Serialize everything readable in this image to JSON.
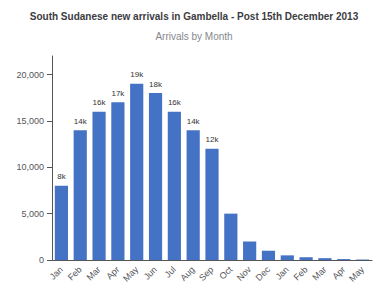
{
  "chart_data": {
    "type": "bar",
    "title": "South Sudanese new arrivals in Gambella - Post 15th December 2013",
    "subtitle": "Arrivals by Month",
    "categories": [
      "Jan",
      "Feb",
      "Mar",
      "Apr",
      "May",
      "Jun",
      "Jul",
      "Aug",
      "Sep",
      "Oct",
      "Nov",
      "Dec",
      "Jan",
      "Feb",
      "Mar",
      "Apr",
      "May"
    ],
    "values": [
      8000,
      14000,
      16000,
      17000,
      19000,
      18000,
      16000,
      14000,
      12000,
      5000,
      2000,
      1000,
      500,
      300,
      200,
      100,
      50
    ],
    "value_labels": [
      "8k",
      "14k",
      "16k",
      "17k",
      "19k",
      "18k",
      "16k",
      "14k",
      "12k",
      null,
      null,
      null,
      null,
      null,
      null,
      null,
      null
    ],
    "data_labels": true,
    "color": "#4472c4",
    "ylim": [
      0,
      22000
    ],
    "yticks": [
      0,
      {
        "value": 5000,
        "label": "5,000"
      },
      {
        "value": 10000,
        "label": "10,000"
      },
      {
        "value": 15000,
        "label": "15,000"
      },
      {
        "value": 20000,
        "label": "20,000"
      }
    ],
    "grid": false
  }
}
